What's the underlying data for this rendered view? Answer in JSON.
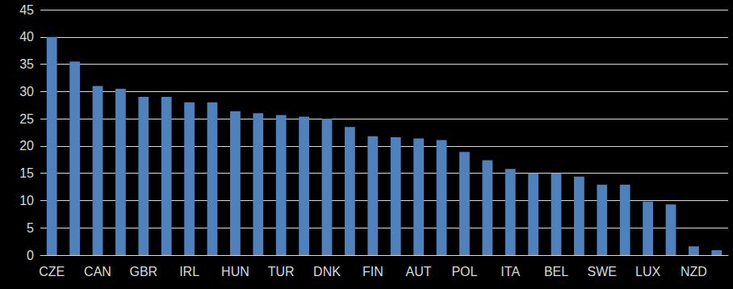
{
  "chart_data": {
    "type": "bar",
    "categories": [
      "CZE",
      null,
      "CAN",
      null,
      "GBR",
      null,
      "IRL",
      null,
      "HUN",
      null,
      "TUR",
      null,
      "DNK",
      null,
      "FIN",
      null,
      "AUT",
      null,
      "POL",
      null,
      "ITA",
      null,
      "BEL",
      null,
      "SWE",
      null,
      "LUX",
      null,
      "NZD",
      null
    ],
    "values": [
      40,
      35.5,
      31,
      30.5,
      29,
      29,
      28,
      28,
      26.4,
      26,
      25.7,
      25.4,
      25,
      23.5,
      21.8,
      21.6,
      21.4,
      21.1,
      18.9,
      17.4,
      15.8,
      15,
      15,
      14.4,
      12.9,
      12.9,
      9.8,
      9.3,
      1.6,
      0.9
    ],
    "color": "#4f81bd",
    "ylim": [
      0,
      45
    ],
    "yticks": [
      0,
      5,
      10,
      15,
      20,
      25,
      30,
      35,
      40,
      45
    ],
    "grid": true
  }
}
